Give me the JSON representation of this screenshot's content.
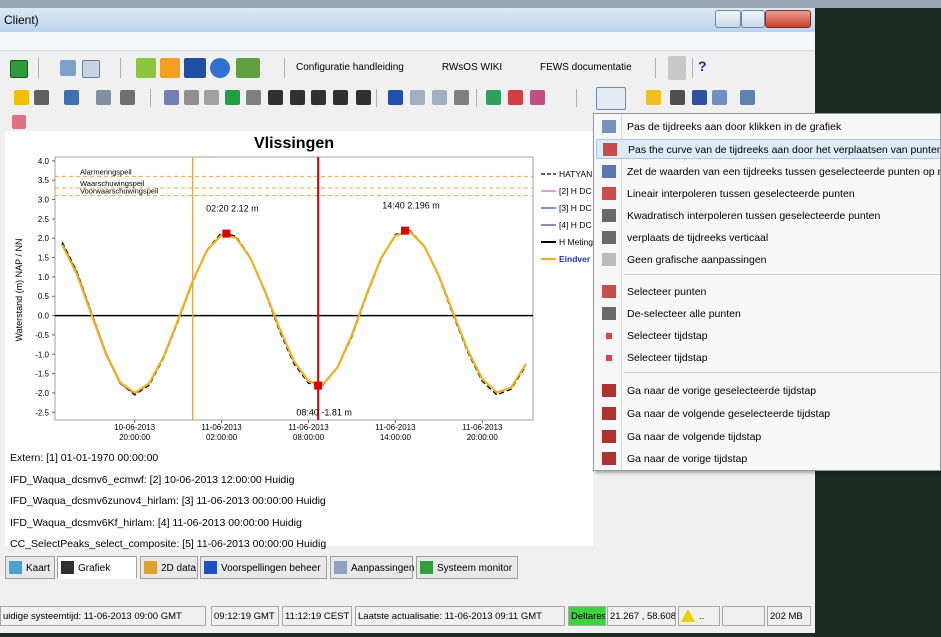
{
  "window": {
    "title": "Client)"
  },
  "toolbar": {
    "links": [
      "Configuratie handleiding",
      "RWsOS WIKI",
      "FEWS documentatie"
    ],
    "help": "?"
  },
  "chart_data": {
    "type": "line",
    "title": "Vlissingen",
    "y_label": "Waterstand (m) NAP / NN",
    "x": [
      "10-06-2013 15:00:00",
      "10-06-2013 16:00:00",
      "10-06-2013 17:00:00",
      "10-06-2013 18:00:00",
      "10-06-2013 19:00:00",
      "10-06-2013 20:00:00",
      "10-06-2013 21:00:00",
      "10-06-2013 22:00:00",
      "10-06-2013 23:00:00",
      "11-06-2013 00:00:00",
      "11-06-2013 01:00:00",
      "11-06-2013 02:00:00",
      "11-06-2013 03:00:00",
      "11-06-2013 04:00:00",
      "11-06-2013 05:00:00",
      "11-06-2013 06:00:00",
      "11-06-2013 07:00:00",
      "11-06-2013 08:00:00",
      "11-06-2013 09:00:00",
      "11-06-2013 10:00:00",
      "11-06-2013 11:00:00",
      "11-06-2013 12:00:00",
      "11-06-2013 13:00:00",
      "11-06-2013 14:00:00",
      "11-06-2013 15:00:00",
      "11-06-2013 16:00:00",
      "11-06-2013 17:00:00",
      "11-06-2013 18:00:00",
      "11-06-2013 19:00:00",
      "11-06-2013 20:00:00",
      "11-06-2013 21:00:00",
      "11-06-2013 22:00:00",
      "11-06-2013 23:00:00"
    ],
    "xlim": [
      "10-06-2013 14:30:00",
      "11-06-2013 23:30:00"
    ],
    "xticks": [
      "10-06-2013 20:00:00",
      "11-06-2013 02:00:00",
      "11-06-2013 08:00:00",
      "11-06-2013 14:00:00",
      "11-06-2013 20:00:00"
    ],
    "ylim": [
      -2.7,
      4.1
    ],
    "yticks": [
      {
        "value": 4,
        "label": "4.0"
      },
      {
        "value": 3.5,
        "label": "3.5"
      },
      {
        "value": 3,
        "label": "3.0"
      },
      {
        "value": 2.5,
        "label": "2.5"
      },
      {
        "value": 2,
        "label": "2.0"
      },
      {
        "value": 1.5,
        "label": "1.5"
      },
      {
        "value": 1,
        "label": "1.0"
      },
      {
        "value": 0.5,
        "label": "0.5"
      },
      {
        "value": 0,
        "label": "0.0"
      },
      {
        "value": -0.5,
        "label": "-0.5"
      },
      {
        "value": -1,
        "label": "-1.0"
      },
      {
        "value": -1.5,
        "label": "-1.5"
      },
      {
        "value": -2,
        "label": "-2.0"
      },
      {
        "value": -2.5,
        "label": "-2.5"
      }
    ],
    "thresholds": [
      {
        "label": "Alarmeringspeil",
        "value": 3.6,
        "color": "#f0a050"
      },
      {
        "label": "Waarschuwingspeil",
        "value": 3.3,
        "color": "#f0a050"
      },
      {
        "label": "Voorwaarschuwingspeil",
        "value": 3.1,
        "color": "#f0a050"
      }
    ],
    "markers": [
      {
        "x": "11-06-2013 00:00:00",
        "color": "#f0a040"
      },
      {
        "x": "11-06-2013 08:40:00",
        "color": "#e00000"
      }
    ],
    "peaks": [
      {
        "x": "11-06-2013 02:20:00",
        "value": 2.12,
        "label": "02:20 2.12 m"
      },
      {
        "x": "11-06-2013 14:40:00",
        "value": 2.196,
        "label": "14:40 2.196 m"
      },
      {
        "x": "11-06-2013 08:40:00",
        "value": -1.81,
        "label": "08:40 -1.81 m"
      }
    ],
    "peak_color": "#e00000",
    "series": [
      {
        "name": "HATYAN",
        "color": "#000000",
        "dash": true,
        "width": 1.3,
        "values": [
          1.9,
          1.15,
          0.1,
          -0.95,
          -1.75,
          -2.05,
          -1.8,
          -1.1,
          -0.15,
          0.85,
          1.7,
          2.15,
          2.05,
          1.5,
          0.6,
          -0.4,
          -1.25,
          -1.75,
          -1.8,
          -1.35,
          -0.55,
          0.5,
          1.45,
          2.1,
          2.2,
          1.8,
          1.0,
          0.0,
          -0.95,
          -1.7,
          -2.05,
          -1.9,
          -1.3
        ]
      },
      {
        "name": "[2] H DC",
        "color": "#c060c0",
        "dash": false,
        "width": 1.2,
        "values": [
          1.83,
          1.08,
          0.05,
          -0.98,
          -1.73,
          -2.0,
          -1.75,
          -1.06,
          -0.11,
          0.89,
          1.69,
          2.09,
          2.01,
          1.48,
          0.63,
          -0.33,
          -1.18,
          -1.7,
          -1.78,
          -1.34,
          -0.5,
          0.54,
          1.48,
          2.07,
          2.17,
          1.79,
          1.03,
          0.06,
          -0.9,
          -1.64,
          -1.99,
          -1.86,
          -1.25
        ]
      },
      {
        "name": "[3] H DC",
        "color": "#2050a0",
        "dash": false,
        "width": 1.2,
        "values": [
          1.83,
          1.08,
          0.05,
          -0.98,
          -1.73,
          -2.0,
          -1.75,
          -1.06,
          -0.11,
          0.89,
          1.69,
          2.09,
          2.01,
          1.48,
          0.63,
          -0.33,
          -1.18,
          -1.7,
          -1.78,
          -1.34,
          -0.5,
          0.54,
          1.48,
          2.07,
          2.17,
          1.79,
          1.03,
          0.06,
          -0.9,
          -1.64,
          -1.99,
          -1.86,
          -1.25
        ]
      },
      {
        "name": "[4] H DC",
        "color": "#404080",
        "dash": false,
        "width": 1.2,
        "values": [
          1.83,
          1.08,
          0.05,
          -0.98,
          -1.73,
          -2.0,
          -1.75,
          -1.06,
          -0.11,
          0.89,
          1.69,
          2.09,
          2.01,
          1.48,
          0.63,
          -0.33,
          -1.18,
          -1.7,
          -1.78,
          -1.34,
          -0.5,
          0.54,
          1.48,
          2.07,
          2.17,
          1.79,
          1.03,
          0.06,
          -0.9,
          -1.64,
          -1.99,
          -1.86,
          -1.25
        ]
      },
      {
        "name": "H Meting",
        "color": "#000000",
        "dash": false,
        "width": 2,
        "values": [
          1.85,
          1.1,
          0.06,
          -0.97,
          -1.74,
          -2.01,
          -1.76,
          null,
          null,
          null,
          null,
          null,
          null,
          null,
          null,
          null,
          null,
          null,
          null,
          null,
          null,
          null,
          null,
          null,
          null,
          null,
          null,
          null,
          null,
          null,
          null,
          null,
          null
        ]
      },
      {
        "name": "Eindver",
        "color": "#f0b020",
        "dash": false,
        "width": 2.2,
        "values": [
          1.83,
          1.08,
          0.05,
          -0.98,
          -1.73,
          -2.0,
          -1.75,
          -1.06,
          -0.11,
          0.89,
          1.69,
          2.09,
          2.01,
          1.48,
          0.63,
          -0.33,
          -1.18,
          -1.7,
          -1.78,
          -1.34,
          -0.5,
          0.54,
          1.48,
          2.07,
          2.17,
          1.79,
          1.03,
          0.06,
          -0.9,
          -1.64,
          -1.99,
          -1.86,
          -1.25
        ]
      }
    ]
  },
  "info_lines": [
    "Extern: [1] 01-01-1970 00:00:00",
    "IFD_Waqua_dcsmv6_ecmwf: [2] 10-06-2013 12:00:00 Huidig",
    "IFD_Waqua_dcsmv6zunov4_hirlam: [3] 11-06-2013 00:00:00 Huidig",
    "IFD_Waqua_dcsmv6Kf_hirlam: [4] 11-06-2013 00:00:00 Huidig",
    "CC_SelectPeaks_select_composite: [5] 11-06-2013 00:00:00 Huidig"
  ],
  "context_menu": {
    "groups": [
      [
        "Pas de tijdreeks aan door klikken in de grafiek",
        "Pas the curve van de tijdreeks aan door het verplaatsen van punten",
        "Zet de waarden van een tijdreeks tussen geselecteerde punten op m",
        "Lineair interpoleren tussen geselecteerde punten",
        "Kwadratisch interpoleren tussen geselecteerde punten",
        "verplaats de tijdreeks verticaal",
        "Geen grafische aanpassingen"
      ],
      [
        "Selecteer punten",
        "De-selecteer alle punten",
        "Selecteer tijdstap",
        "Selecteer tijdstap"
      ],
      [
        "Ga naar de vorige geselecteerde tijdstap",
        "Ga naar de volgende geselecteerde tijdstap",
        "Ga naar de volgende tijdstap",
        "Ga naar de vorige tijdstap"
      ]
    ]
  },
  "tabs": [
    "Kaart",
    "Grafiek",
    "2D data",
    "Voorspellingen beheer",
    "Aanpassingen",
    "Systeem monitor"
  ],
  "status_bar": [
    "uidige systeemtijd: 11-06-2013 09:00 GMT",
    "09:12:19 GMT",
    "11:12:19 CEST",
    "Laatste actualisatie: 11-06-2013 09:11 GMT",
    "Deltares",
    "21.267 , 58.608",
    "..",
    "202 MB"
  ]
}
